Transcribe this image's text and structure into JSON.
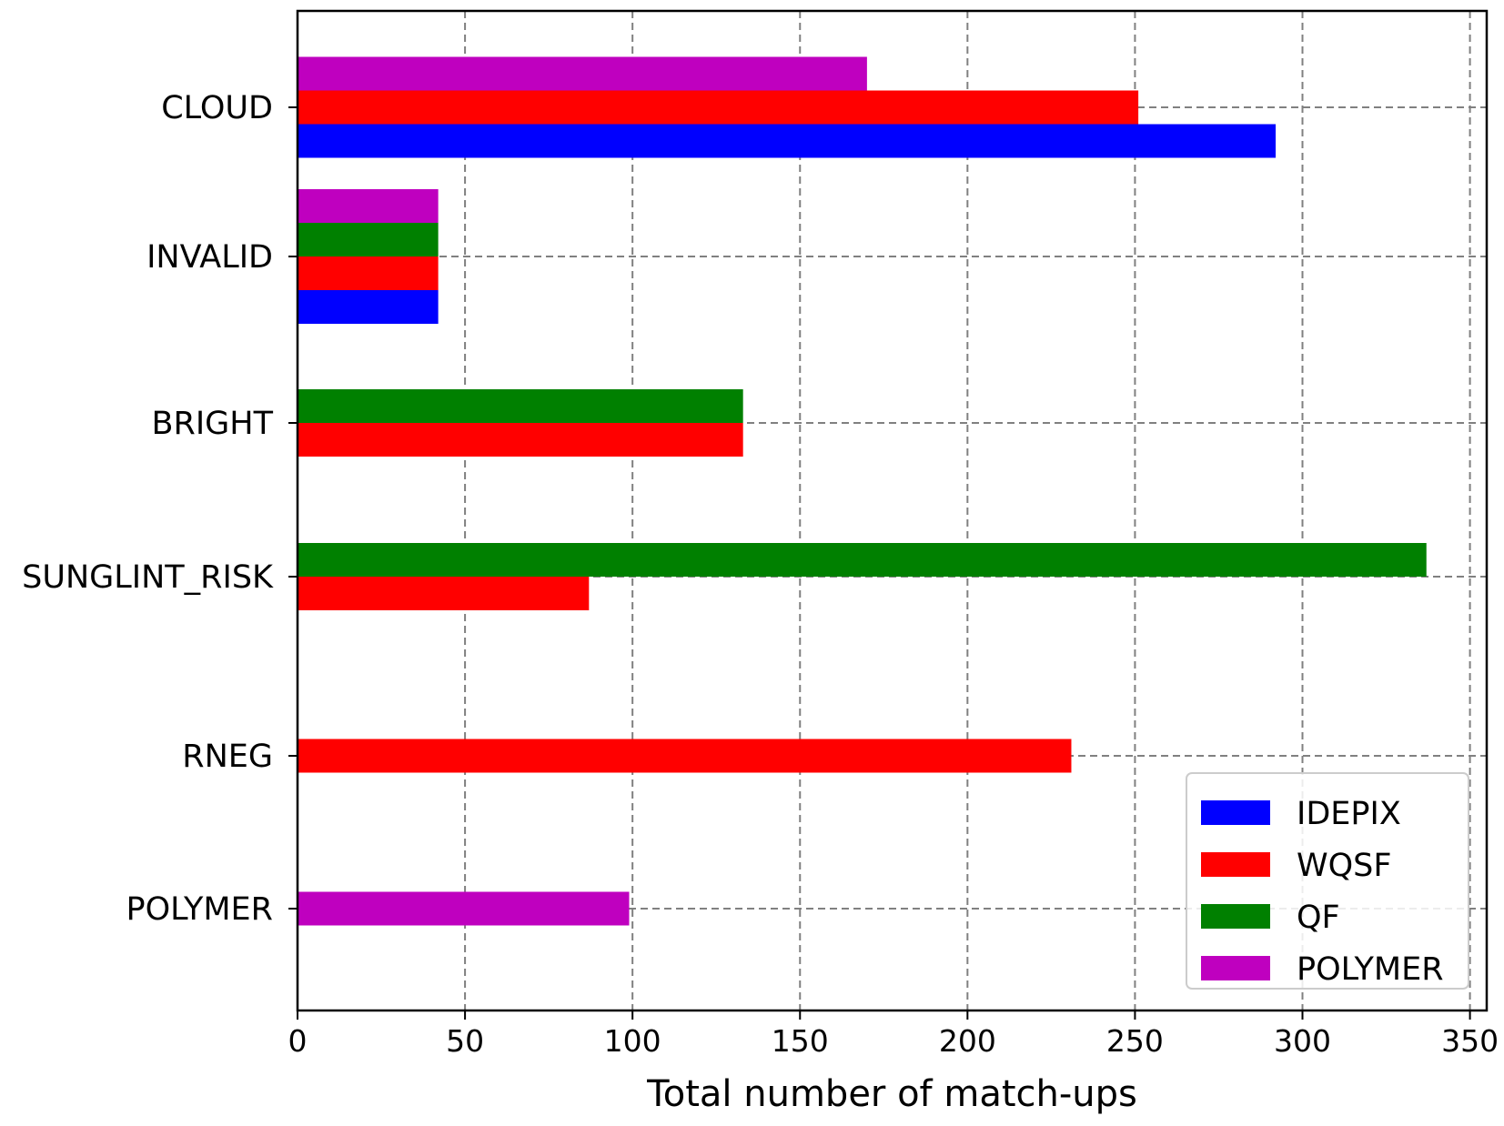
{
  "chart_data": {
    "type": "bar",
    "orientation": "horizontal",
    "xlabel": "Total number of match-ups",
    "ylabel": "",
    "xlim": [
      0,
      355
    ],
    "xticks": [
      0,
      50,
      100,
      150,
      200,
      250,
      300,
      350
    ],
    "xtick_labels": [
      "0",
      "50",
      "100",
      "150",
      "200",
      "250",
      "300",
      "350"
    ],
    "grid": true,
    "legend_position": "lower-right",
    "categories": [
      "CLOUD",
      "INVALID",
      "BRIGHT",
      "SUNGLINT_RISK",
      "RNEG",
      "POLYMER"
    ],
    "series": [
      {
        "name": "IDEPIX",
        "color": "#0000ff"
      },
      {
        "name": "WQSF",
        "color": "#ff0000"
      },
      {
        "name": "QF",
        "color": "#008000"
      },
      {
        "name": "POLYMER",
        "color": "#bf00bf"
      }
    ],
    "groups": [
      {
        "category": "CLOUD",
        "bars": [
          {
            "series": "POLYMER",
            "value": 170
          },
          {
            "series": "WQSF",
            "value": 251
          },
          {
            "series": "IDEPIX",
            "value": 292
          }
        ]
      },
      {
        "category": "INVALID",
        "bars": [
          {
            "series": "POLYMER",
            "value": 42
          },
          {
            "series": "QF",
            "value": 42
          },
          {
            "series": "WQSF",
            "value": 42
          },
          {
            "series": "IDEPIX",
            "value": 42
          }
        ]
      },
      {
        "category": "BRIGHT",
        "bars": [
          {
            "series": "QF",
            "value": 133
          },
          {
            "series": "WQSF",
            "value": 133
          }
        ]
      },
      {
        "category": "SUNGLINT_RISK",
        "bars": [
          {
            "series": "QF",
            "value": 337
          },
          {
            "series": "WQSF",
            "value": 87
          }
        ]
      },
      {
        "category": "RNEG",
        "bars": [
          {
            "series": "WQSF",
            "value": 231
          }
        ]
      },
      {
        "category": "POLYMER",
        "bars": [
          {
            "series": "POLYMER",
            "value": 99
          }
        ]
      }
    ]
  }
}
